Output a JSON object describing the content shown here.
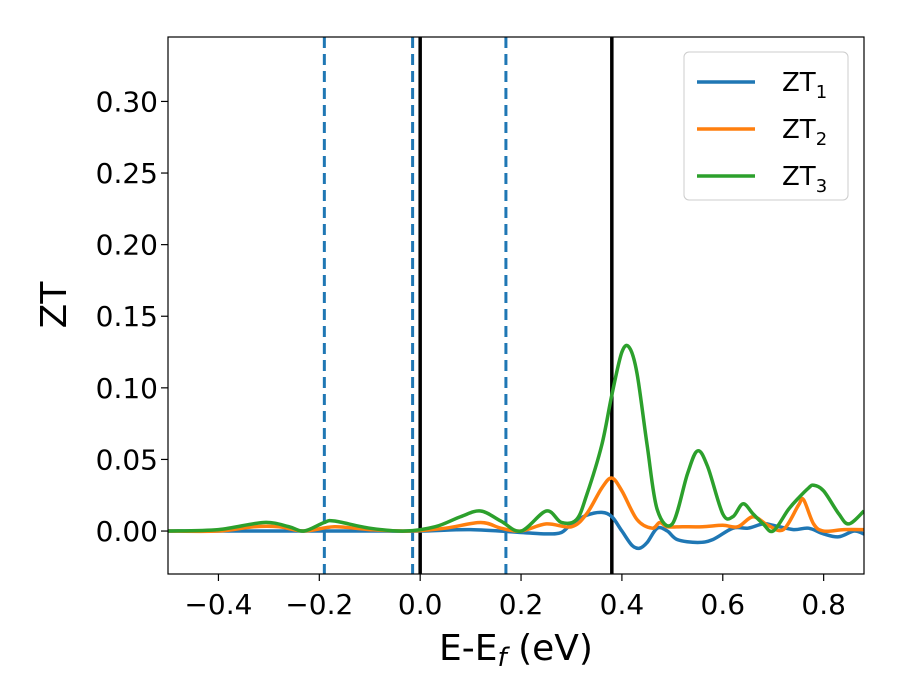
{
  "chart_data": {
    "type": "line",
    "xlabel": "E-E",
    "xlabel_sub": "f",
    "xlabel_unit": " (eV)",
    "ylabel": "ZT",
    "xlim": [
      -0.5,
      0.88
    ],
    "ylim": [
      -0.03,
      0.345
    ],
    "xticks": [
      -0.4,
      -0.2,
      0.0,
      0.2,
      0.4,
      0.6,
      0.8
    ],
    "xtick_labels": [
      "−0.4",
      "−0.2",
      "0.0",
      "0.2",
      "0.4",
      "0.6",
      "0.8"
    ],
    "yticks": [
      0.0,
      0.05,
      0.1,
      0.15,
      0.2,
      0.25,
      0.3
    ],
    "ytick_labels": [
      "0.00",
      "0.05",
      "0.10",
      "0.15",
      "0.20",
      "0.25",
      "0.30"
    ],
    "grid": false,
    "legend_position": "top-right",
    "legend": [
      {
        "base": "ZT",
        "sub": "1",
        "color": "#1f77b4"
      },
      {
        "base": "ZT",
        "sub": "2",
        "color": "#ff7f0e"
      },
      {
        "base": "ZT",
        "sub": "3",
        "color": "#2ca02c"
      }
    ],
    "vlines": [
      {
        "x": -0.19,
        "style": "dashed",
        "color": "#1f77b4"
      },
      {
        "x": -0.015,
        "style": "dashed",
        "color": "#1f77b4"
      },
      {
        "x": 0.17,
        "style": "dashed",
        "color": "#1f77b4"
      },
      {
        "x": 0.0,
        "style": "solid",
        "color": "#000000"
      },
      {
        "x": 0.38,
        "style": "solid",
        "color": "#000000"
      }
    ],
    "series": [
      {
        "color": "#1f77b4",
        "points": [
          [
            -0.5,
            0
          ],
          [
            -0.3,
            0
          ],
          [
            -0.1,
            0
          ],
          [
            0.0,
            0
          ],
          [
            0.1,
            0.001
          ],
          [
            0.2,
            -0.001
          ],
          [
            0.25,
            -0.002
          ],
          [
            0.28,
            -0.001
          ],
          [
            0.3,
            0.005
          ],
          [
            0.33,
            0.011
          ],
          [
            0.36,
            0.013
          ],
          [
            0.38,
            0.01
          ],
          [
            0.4,
            0.0
          ],
          [
            0.42,
            -0.01
          ],
          [
            0.435,
            -0.012
          ],
          [
            0.45,
            -0.008
          ],
          [
            0.47,
            0.002
          ],
          [
            0.49,
            0.0
          ],
          [
            0.51,
            -0.006
          ],
          [
            0.55,
            -0.008
          ],
          [
            0.58,
            -0.006
          ],
          [
            0.62,
            0.002
          ],
          [
            0.65,
            0.002
          ],
          [
            0.68,
            0.005
          ],
          [
            0.7,
            0.004
          ],
          [
            0.74,
            0.001
          ],
          [
            0.77,
            0.002
          ],
          [
            0.8,
            -0.002
          ],
          [
            0.83,
            -0.004
          ],
          [
            0.86,
            0.0
          ],
          [
            0.88,
            -0.002
          ]
        ]
      },
      {
        "color": "#ff7f0e",
        "points": [
          [
            -0.5,
            0
          ],
          [
            -0.4,
            0.0
          ],
          [
            -0.33,
            0.003
          ],
          [
            -0.28,
            0.003
          ],
          [
            -0.23,
            0.0
          ],
          [
            -0.17,
            0.003
          ],
          [
            -0.1,
            0.001
          ],
          [
            -0.02,
            0.0
          ],
          [
            0.05,
            0.002
          ],
          [
            0.12,
            0.006
          ],
          [
            0.16,
            0.002
          ],
          [
            0.2,
            0.0
          ],
          [
            0.25,
            0.005
          ],
          [
            0.3,
            0.003
          ],
          [
            0.33,
            0.012
          ],
          [
            0.36,
            0.03
          ],
          [
            0.38,
            0.037
          ],
          [
            0.4,
            0.028
          ],
          [
            0.43,
            0.008
          ],
          [
            0.46,
            0.002
          ],
          [
            0.475,
            0.006
          ],
          [
            0.49,
            0.003
          ],
          [
            0.52,
            0.003
          ],
          [
            0.56,
            0.003
          ],
          [
            0.6,
            0.004
          ],
          [
            0.63,
            0.003
          ],
          [
            0.66,
            0.01
          ],
          [
            0.69,
            0.004
          ],
          [
            0.72,
            0.001
          ],
          [
            0.75,
            0.018
          ],
          [
            0.76,
            0.022
          ],
          [
            0.78,
            0.005
          ],
          [
            0.8,
            0.0
          ],
          [
            0.84,
            0.001
          ],
          [
            0.88,
            0.001
          ]
        ]
      },
      {
        "color": "#2ca02c",
        "points": [
          [
            -0.5,
            0
          ],
          [
            -0.4,
            0.001
          ],
          [
            -0.31,
            0.006
          ],
          [
            -0.26,
            0.003
          ],
          [
            -0.23,
            0.0
          ],
          [
            -0.19,
            0.006
          ],
          [
            -0.17,
            0.007
          ],
          [
            -0.1,
            0.002
          ],
          [
            -0.03,
            0.0
          ],
          [
            0.03,
            0.003
          ],
          [
            0.08,
            0.01
          ],
          [
            0.12,
            0.014
          ],
          [
            0.16,
            0.007
          ],
          [
            0.2,
            0.0
          ],
          [
            0.25,
            0.014
          ],
          [
            0.28,
            0.006
          ],
          [
            0.31,
            0.008
          ],
          [
            0.33,
            0.025
          ],
          [
            0.36,
            0.06
          ],
          [
            0.38,
            0.095
          ],
          [
            0.4,
            0.125
          ],
          [
            0.415,
            0.128
          ],
          [
            0.43,
            0.11
          ],
          [
            0.45,
            0.06
          ],
          [
            0.47,
            0.015
          ],
          [
            0.5,
            0.005
          ],
          [
            0.53,
            0.04
          ],
          [
            0.55,
            0.056
          ],
          [
            0.57,
            0.045
          ],
          [
            0.6,
            0.012
          ],
          [
            0.62,
            0.01
          ],
          [
            0.64,
            0.019
          ],
          [
            0.66,
            0.012
          ],
          [
            0.68,
            0.005
          ],
          [
            0.7,
            0.0
          ],
          [
            0.73,
            0.015
          ],
          [
            0.75,
            0.023
          ],
          [
            0.77,
            0.03
          ],
          [
            0.78,
            0.032
          ],
          [
            0.8,
            0.028
          ],
          [
            0.83,
            0.012
          ],
          [
            0.85,
            0.005
          ],
          [
            0.88,
            0.014
          ]
        ]
      }
    ]
  }
}
